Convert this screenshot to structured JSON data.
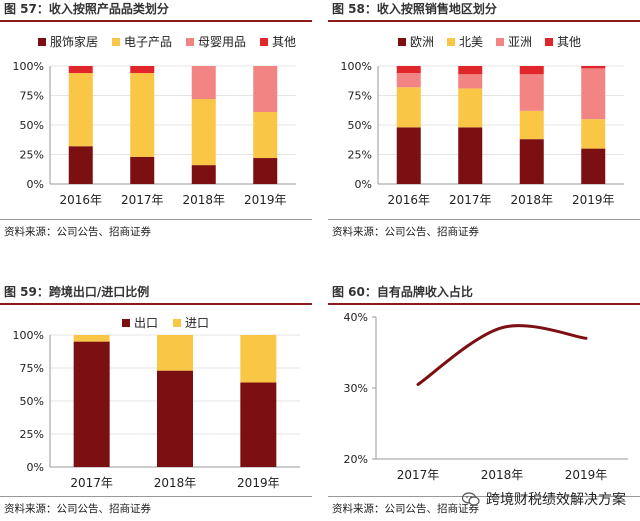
{
  "colors": {
    "dark_red": "#7b0f12",
    "yellow": "#f9c646",
    "pink": "#f28583",
    "red": "#e0262b",
    "grid": "#dddddd"
  },
  "panels": [
    {
      "title": "图 57：收入按照产品品类划分",
      "source": "资料来源：公司公告、招商证券"
    },
    {
      "title": "图 58：收入按照销售地区划分",
      "source": "资料来源：公司公告、招商证券"
    },
    {
      "title": "图 59：跨境出口/进口比例",
      "source": "资料来源：公司公告、招商证券"
    },
    {
      "title": "图 60：自有品牌收入占比",
      "source": "资料来源：公司公告、招商证券"
    }
  ],
  "watermark": "跨境财税绩效解决方案",
  "chart_data": [
    {
      "type": "bar",
      "stacked": true,
      "title": "图 57：收入按照产品品类划分",
      "categories": [
        "2016年",
        "2017年",
        "2018年",
        "2019年"
      ],
      "yticks": [
        "100%",
        "75%",
        "50%",
        "25%",
        "0%"
      ],
      "ylim": [
        0,
        100
      ],
      "series": [
        {
          "name": "服饰家居",
          "color": "#7b0f12",
          "values": [
            32,
            23,
            16,
            22
          ]
        },
        {
          "name": "电子产品",
          "color": "#f9c646",
          "values": [
            62,
            71,
            56,
            39
          ]
        },
        {
          "name": "母婴用品",
          "color": "#f28583",
          "values": [
            0,
            0,
            28,
            39
          ]
        },
        {
          "name": "其他",
          "color": "#e0262b",
          "values": [
            6,
            6,
            0,
            0
          ]
        }
      ]
    },
    {
      "type": "bar",
      "stacked": true,
      "title": "图 58：收入按照销售地区划分",
      "categories": [
        "2016年",
        "2017年",
        "2018年",
        "2019年"
      ],
      "yticks": [
        "100%",
        "75%",
        "50%",
        "25%",
        "0%"
      ],
      "ylim": [
        0,
        100
      ],
      "series": [
        {
          "name": "欧洲",
          "color": "#7b0f12",
          "values": [
            48,
            48,
            38,
            30
          ]
        },
        {
          "name": "北美",
          "color": "#f9c646",
          "values": [
            34,
            33,
            24,
            25
          ]
        },
        {
          "name": "亚洲",
          "color": "#f28583",
          "values": [
            12,
            12,
            31,
            43
          ]
        },
        {
          "name": "其他",
          "color": "#e0262b",
          "values": [
            6,
            7,
            7,
            2
          ]
        }
      ]
    },
    {
      "type": "bar",
      "stacked": true,
      "title": "图 59：跨境出口/进口比例",
      "categories": [
        "2017年",
        "2018年",
        "2019年"
      ],
      "yticks": [
        "100%",
        "75%",
        "50%",
        "25%",
        "0%"
      ],
      "ylim": [
        0,
        100
      ],
      "series": [
        {
          "name": "出口",
          "color": "#7b0f12",
          "values": [
            95,
            73,
            64
          ]
        },
        {
          "name": "进口",
          "color": "#f9c646",
          "values": [
            5,
            27,
            36
          ]
        }
      ]
    },
    {
      "type": "line",
      "title": "图 60：自有品牌收入占比",
      "x": [
        "2017年",
        "2018年",
        "2019年"
      ],
      "yticks": [
        "40%",
        "30%",
        "20%"
      ],
      "ylim": [
        20,
        40
      ],
      "series": [
        {
          "name": "自有品牌收入占比",
          "color": "#7b0f12",
          "values": [
            30.5,
            38.5,
            37
          ]
        }
      ]
    }
  ]
}
